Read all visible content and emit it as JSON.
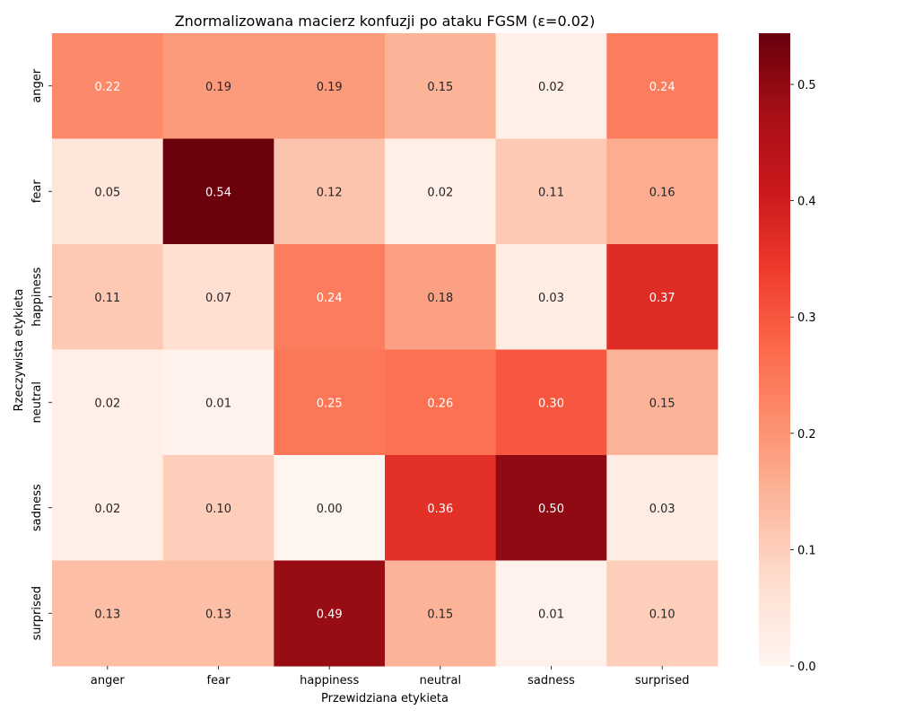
{
  "chart_data": {
    "type": "heatmap",
    "title": "Znormalizowana macierz konfuzji po ataku FGSM (ε=0.02)",
    "xlabel": "Przewidziana etykieta",
    "ylabel": "Rzeczywista etykieta",
    "x_categories": [
      "anger",
      "fear",
      "happiness",
      "neutral",
      "sadness",
      "surprised"
    ],
    "y_categories": [
      "anger",
      "fear",
      "happiness",
      "neutral",
      "sadness",
      "surprised"
    ],
    "values": [
      [
        0.22,
        0.19,
        0.19,
        0.15,
        0.02,
        0.24
      ],
      [
        0.05,
        0.54,
        0.12,
        0.02,
        0.11,
        0.16
      ],
      [
        0.11,
        0.07,
        0.24,
        0.18,
        0.03,
        0.37
      ],
      [
        0.02,
        0.01,
        0.25,
        0.26,
        0.3,
        0.15
      ],
      [
        0.02,
        0.1,
        0.0,
        0.36,
        0.5,
        0.03
      ],
      [
        0.13,
        0.13,
        0.49,
        0.15,
        0.01,
        0.1
      ]
    ],
    "value_labels": [
      [
        "0.22",
        "0.19",
        "0.19",
        "0.15",
        "0.02",
        "0.24"
      ],
      [
        "0.05",
        "0.54",
        "0.12",
        "0.02",
        "0.11",
        "0.16"
      ],
      [
        "0.11",
        "0.07",
        "0.24",
        "0.18",
        "0.03",
        "0.37"
      ],
      [
        "0.02",
        "0.01",
        "0.25",
        "0.26",
        "0.30",
        "0.15"
      ],
      [
        "0.02",
        "0.10",
        "0.00",
        "0.36",
        "0.50",
        "0.03"
      ],
      [
        "0.13",
        "0.13",
        "0.49",
        "0.15",
        "0.01",
        "0.10"
      ]
    ],
    "colormap": "Reds",
    "colorbar": {
      "vmin": 0.0,
      "vmax": 0.544,
      "ticks": [
        0.0,
        0.1,
        0.2,
        0.3,
        0.4,
        0.5
      ],
      "tick_labels": [
        "0.0",
        "0.1",
        "0.2",
        "0.3",
        "0.4",
        "0.5"
      ]
    },
    "grid": false,
    "colors": {
      "reds_stops": [
        "#fff5f0",
        "#fee0d2",
        "#fcbba1",
        "#fc9272",
        "#fb6a4a",
        "#ef3b2c",
        "#cb181d",
        "#a50f15",
        "#67000d"
      ]
    }
  }
}
